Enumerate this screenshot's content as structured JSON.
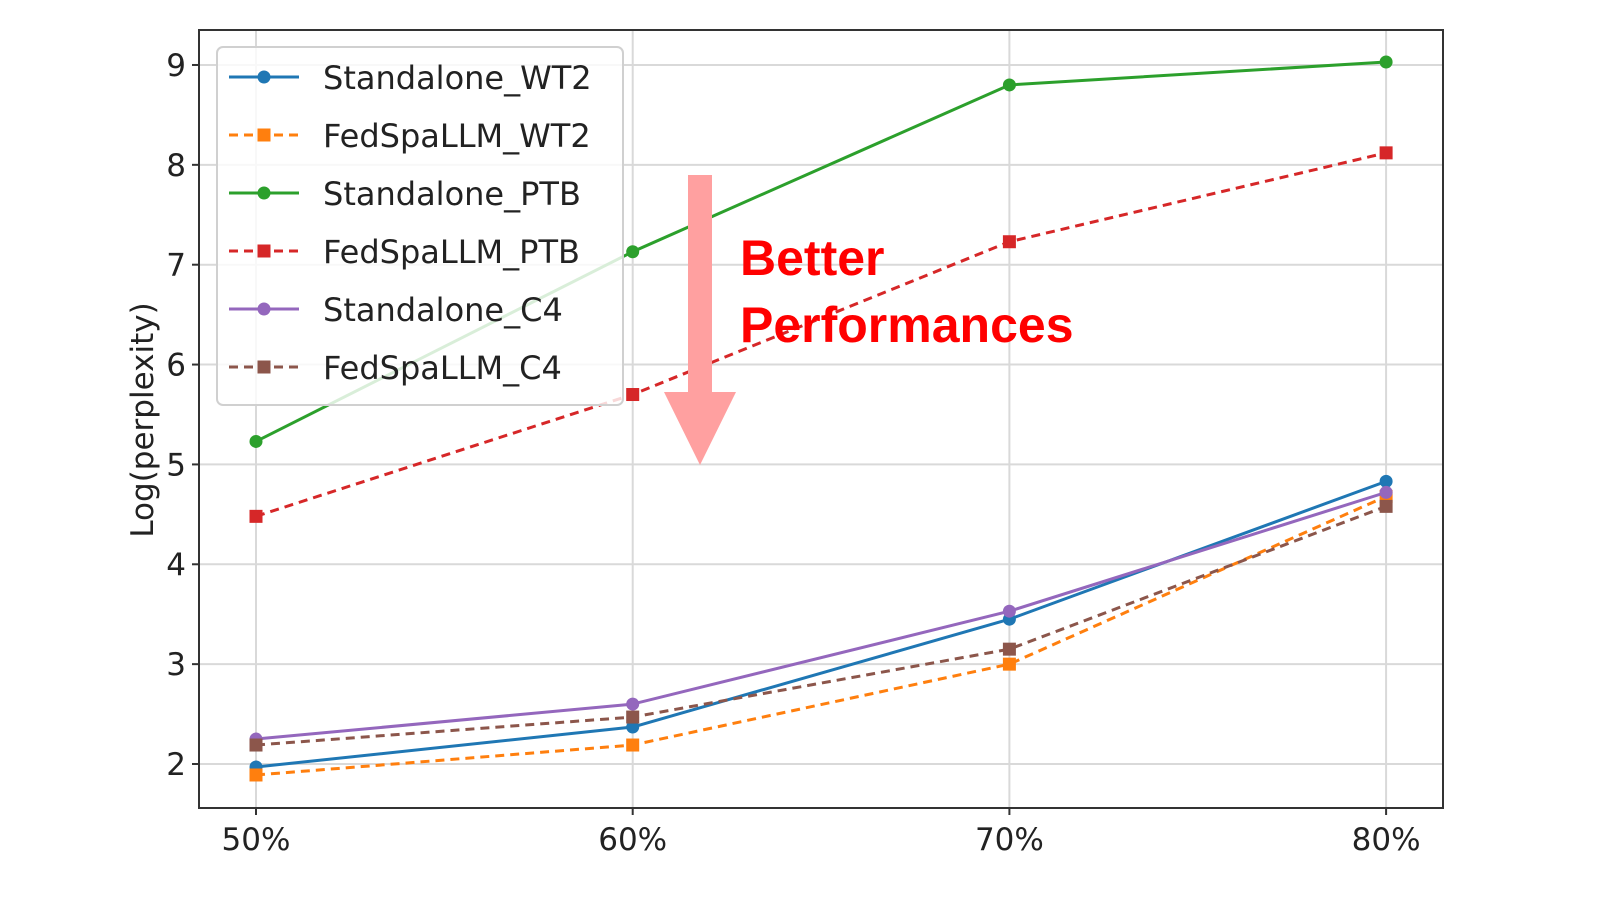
{
  "chart_data": {
    "type": "line",
    "categories": [
      "50%",
      "60%",
      "70%",
      "80%"
    ],
    "xlabel": "",
    "ylabel": "Log(perplexity)",
    "ylim": [
      1.55,
      9.4
    ],
    "yticks": [
      2,
      3,
      4,
      5,
      6,
      7,
      8,
      9
    ],
    "grid": true,
    "legend_position": "upper-left",
    "series": [
      {
        "name": "Standalone_WT2",
        "color": "#1f77b4",
        "style": "solid",
        "marker": "circle",
        "values": [
          1.97,
          2.37,
          3.45,
          4.83
        ]
      },
      {
        "name": "FedSpaLLM_WT2",
        "color": "#ff7f0e",
        "style": "dashed",
        "marker": "square",
        "values": [
          1.89,
          2.19,
          3.0,
          4.68
        ]
      },
      {
        "name": "Standalone_PTB",
        "color": "#2ca02c",
        "style": "solid",
        "marker": "circle",
        "values": [
          5.23,
          7.13,
          8.8,
          9.03
        ]
      },
      {
        "name": "FedSpaLLM_PTB",
        "color": "#d62728",
        "style": "dashed",
        "marker": "square",
        "values": [
          4.48,
          5.7,
          7.23,
          8.12
        ]
      },
      {
        "name": "Standalone_C4",
        "color": "#9467bd",
        "style": "solid",
        "marker": "circle",
        "values": [
          2.25,
          2.6,
          3.53,
          4.72
        ]
      },
      {
        "name": "FedSpaLLM_C4",
        "color": "#8c564b",
        "style": "dashed",
        "marker": "square",
        "values": [
          2.19,
          2.47,
          3.15,
          4.58
        ]
      }
    ],
    "annotation": {
      "lines": [
        "Better",
        "Performances"
      ],
      "color": "#ff0000",
      "arrow_color": "#ffa0a0",
      "arrow_direction": "down"
    }
  }
}
